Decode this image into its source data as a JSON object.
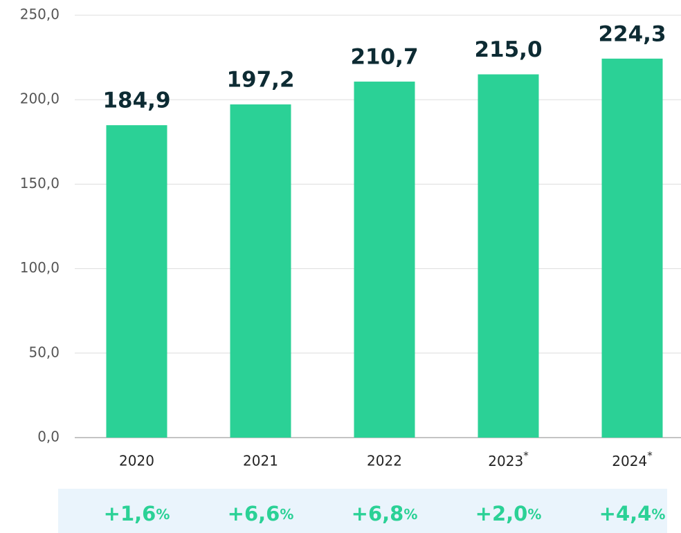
{
  "chart_data": {
    "type": "bar",
    "categories": [
      "2020",
      "2021",
      "2022",
      "2023*",
      "2024*"
    ],
    "values": [
      184.9,
      197.2,
      210.7,
      215.0,
      224.3
    ],
    "value_labels": [
      "184,9",
      "197,2",
      "210,7",
      "215,0",
      "224,3"
    ],
    "color": "#2bd196",
    "ylim": [
      0,
      250
    ],
    "yticks": [
      {
        "value": 0,
        "label": "0,0"
      },
      {
        "value": 50,
        "label": "50,0"
      },
      {
        "value": 100,
        "label": "100,0"
      },
      {
        "value": 150,
        "label": "150,0"
      },
      {
        "value": 200,
        "label": "200,0"
      },
      {
        "value": 250,
        "label": "250,0"
      }
    ],
    "grid": true,
    "growth": {
      "values": [
        1.6,
        6.6,
        6.8,
        2.0,
        4.4
      ],
      "value_labels": [
        "+1,6%",
        "+6,6%",
        "+6,8%",
        "+2,0%",
        "+4,4%"
      ]
    }
  }
}
